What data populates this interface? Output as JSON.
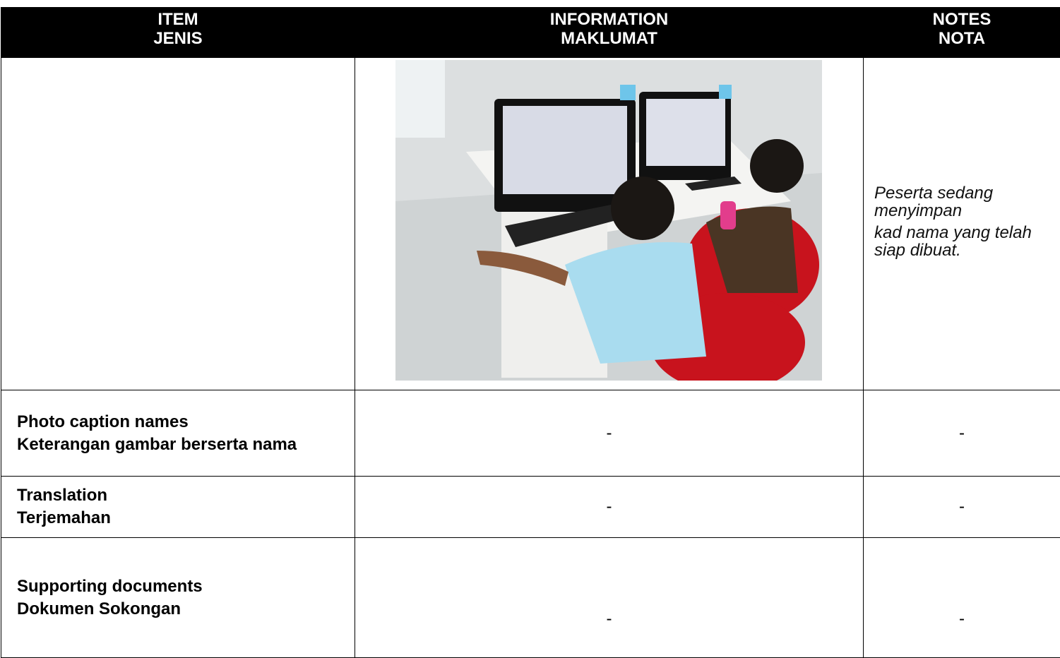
{
  "header": [
    {
      "lines": [
        "ITEM",
        "JENIS"
      ]
    },
    {
      "lines": [
        "INFORMATION",
        "MAKLUMAT"
      ]
    },
    {
      "lines": [
        "NOTES",
        "NOTA"
      ]
    }
  ],
  "photo_row": {
    "notes": [
      "Peserta sedang menyimpan",
      "kad nama yang telah siap dibuat."
    ]
  },
  "rows": [
    {
      "item": [
        "Photo caption names",
        "Keterangan gambar berserta nama"
      ],
      "information": "-",
      "notes": "-"
    },
    {
      "item": [
        "Translation",
        "Terjemahan"
      ],
      "information": "-",
      "notes": "-"
    },
    {
      "item": [
        "Supporting documents",
        "Dokumen Sokongan"
      ],
      "information": "-",
      "notes": "-"
    }
  ]
}
